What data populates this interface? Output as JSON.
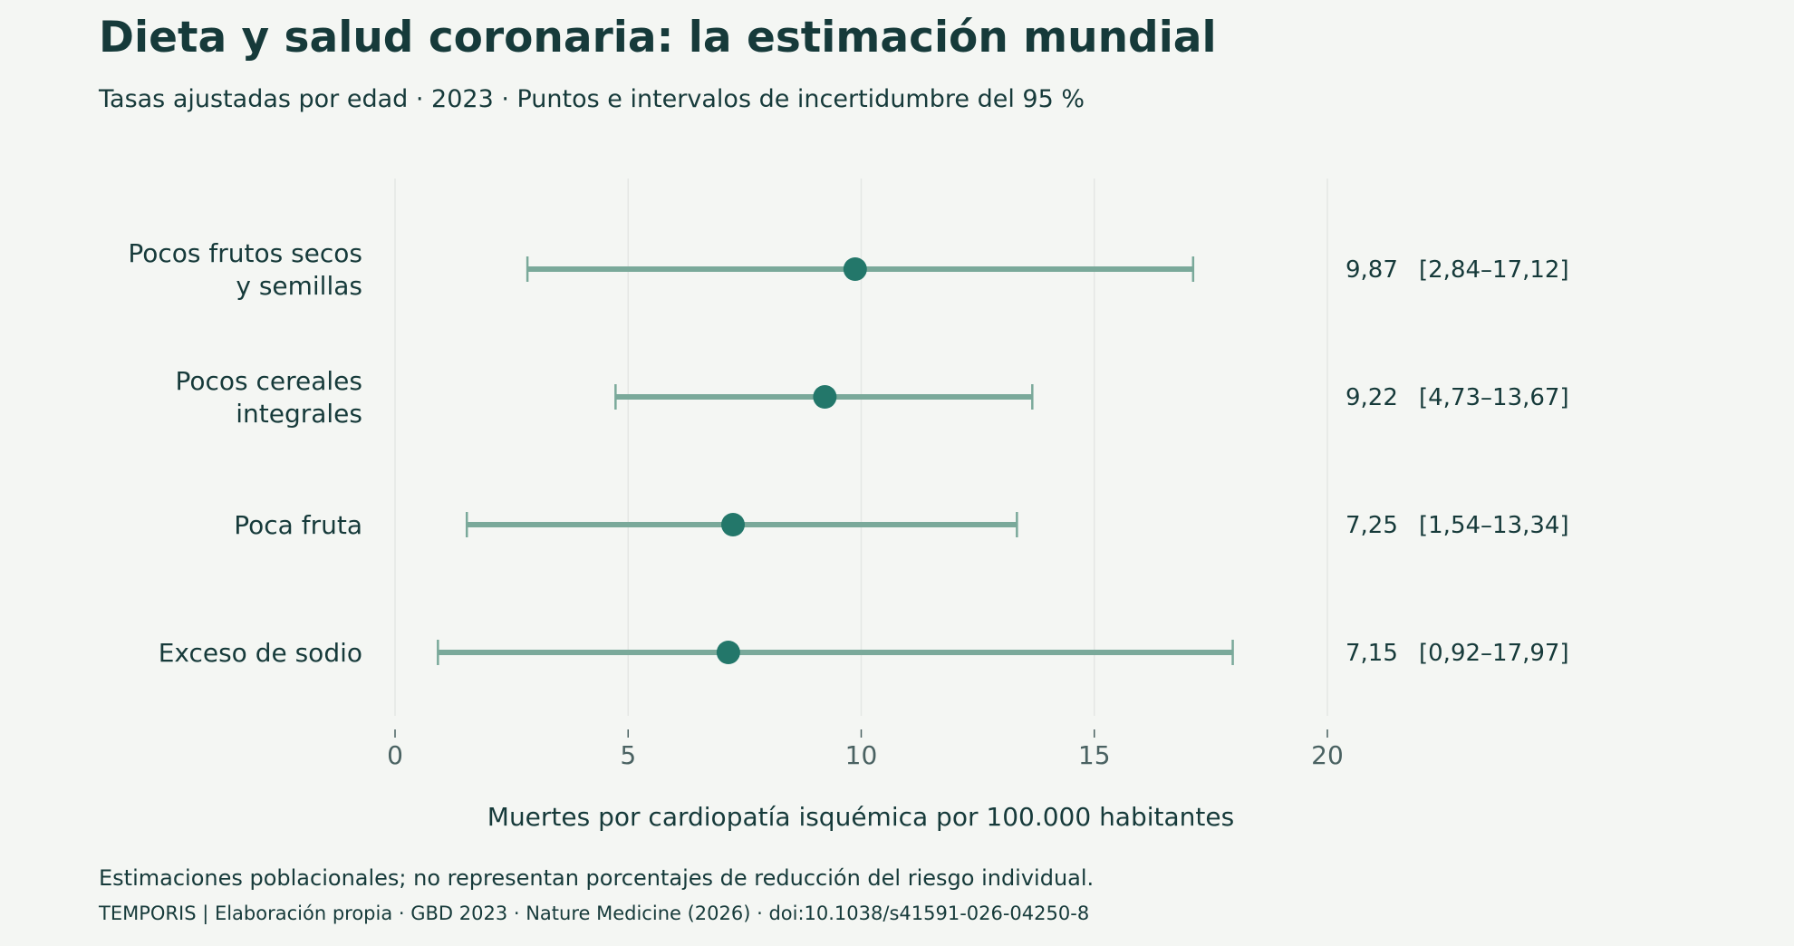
{
  "header": {
    "title": "Dieta y salud coronaria: la estimación mundial",
    "subtitle": "Tasas ajustadas por edad · 2023 · Puntos e intervalos de incertidumbre del 95 %"
  },
  "footer": {
    "note": "Estimaciones poblacionales; no representan porcentajes de reducción del riesgo individual.",
    "source": "TEMPORIS  |  Elaboración propia · GBD 2023 · Nature Medicine (2026) · doi:10.1038/s41591-026-04250-8"
  },
  "colors": {
    "point": "#23776a",
    "interval": "#7aa99a",
    "text": "#163a3a",
    "tick_text": "#4a6262",
    "grid": "#e4e7e4",
    "background": "#f4f6f3"
  },
  "chart_data": {
    "type": "dot-interval",
    "xlabel": "Muertes por cardiopatía isquémica por 100.000 habitantes",
    "xlim": [
      0,
      20
    ],
    "xticks": [
      "0",
      "5",
      "10",
      "15",
      "20"
    ],
    "grid": "vertical",
    "rows": [
      {
        "label": [
          "Pocos frutos secos",
          "y semillas"
        ],
        "value": 9.87,
        "low": 2.84,
        "high": 17.12,
        "value_text": "9,87",
        "interval_text": "[2,84–17,12]"
      },
      {
        "label": [
          "Pocos cereales",
          "integrales"
        ],
        "value": 9.22,
        "low": 4.73,
        "high": 13.67,
        "value_text": "9,22",
        "interval_text": "[4,73–13,67]"
      },
      {
        "label": [
          "Poca fruta"
        ],
        "value": 7.25,
        "low": 1.54,
        "high": 13.34,
        "value_text": "7,25",
        "interval_text": "[1,54–13,34]"
      },
      {
        "label": [
          "Exceso de sodio"
        ],
        "value": 7.15,
        "low": 0.92,
        "high": 17.97,
        "value_text": "7,15",
        "interval_text": "[0,92–17,97]"
      }
    ]
  }
}
